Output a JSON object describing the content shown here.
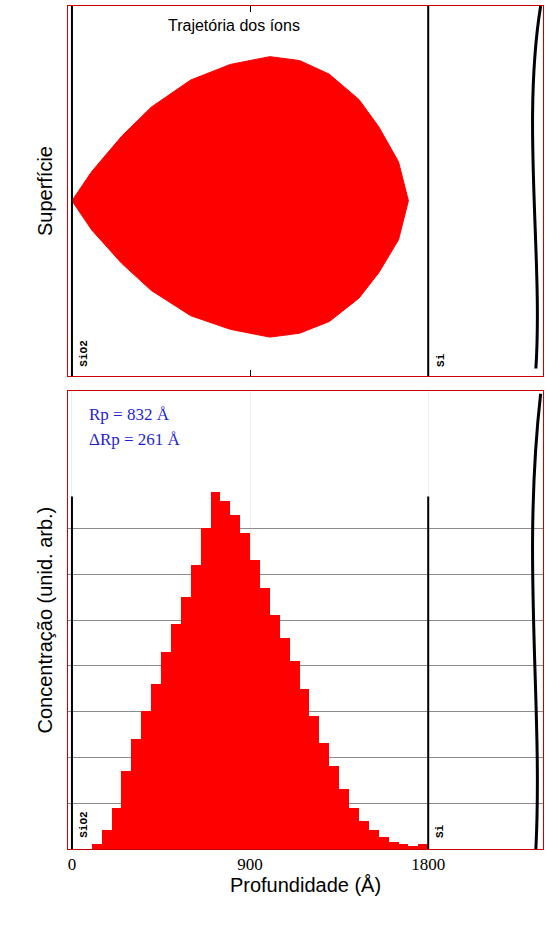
{
  "chart_data": [
    {
      "type": "area",
      "title": "Trajetória dos íons",
      "y_label": "Superfície",
      "x": [
        0,
        100,
        250,
        400,
        600,
        800,
        1000,
        1150,
        1300,
        1450,
        1550,
        1650,
        1700,
        1650,
        1550,
        1450,
        1300,
        1150,
        1000,
        800,
        600,
        400,
        250,
        100,
        0
      ],
      "values": [
        0,
        150,
        330,
        480,
        620,
        700,
        740,
        720,
        650,
        520,
        380,
        200,
        0,
        -200,
        -370,
        -500,
        -620,
        -680,
        -700,
        -660,
        -590,
        -460,
        -320,
        -150,
        0
      ],
      "color": "#ff0000",
      "xlim": [
        -20,
        2380
      ],
      "ylim": [
        -900,
        1000
      ],
      "xticks": [
        0,
        900,
        1800
      ],
      "grid": false,
      "tick_labels": false,
      "layers": [
        {
          "name": "SiO2",
          "start": 0
        },
        {
          "name": "Si",
          "start": 1800
        }
      ]
    },
    {
      "type": "histogram",
      "x_label": "Profundidade (Å)",
      "y_label": "Concentração (unid. arb.)",
      "bins": [
        100,
        150,
        200,
        250,
        300,
        350,
        400,
        450,
        500,
        550,
        600,
        650,
        700,
        750,
        800,
        850,
        900,
        950,
        1000,
        1050,
        1100,
        1150,
        1200,
        1250,
        1300,
        1350,
        1400,
        1450,
        1500,
        1550,
        1600,
        1650,
        1700,
        1750,
        1800
      ],
      "values": [
        0.1,
        0.4,
        0.9,
        1.7,
        2.4,
        3.0,
        3.6,
        4.3,
        4.9,
        5.5,
        6.2,
        7.0,
        7.8,
        7.6,
        7.3,
        6.9,
        6.3,
        5.7,
        5.1,
        4.6,
        4.1,
        3.5,
        2.9,
        2.3,
        1.8,
        1.3,
        0.9,
        0.6,
        0.4,
        0.25,
        0.15,
        0.1,
        0.05,
        0.1
      ],
      "color": "#ff0000",
      "xlim": [
        -20,
        2380
      ],
      "ylim": [
        0,
        10
      ],
      "xticks": [
        0,
        900,
        1800
      ],
      "yticks": [
        1,
        2,
        3,
        4,
        5,
        6,
        7
      ],
      "grid": true,
      "tick_labels": "x",
      "annotations": [
        "Rp = 832 Å",
        "ΔRp = 261 Å"
      ],
      "layers": [
        {
          "name": "SiO2",
          "start": 0
        },
        {
          "name": "Si",
          "start": 1800
        }
      ]
    }
  ]
}
